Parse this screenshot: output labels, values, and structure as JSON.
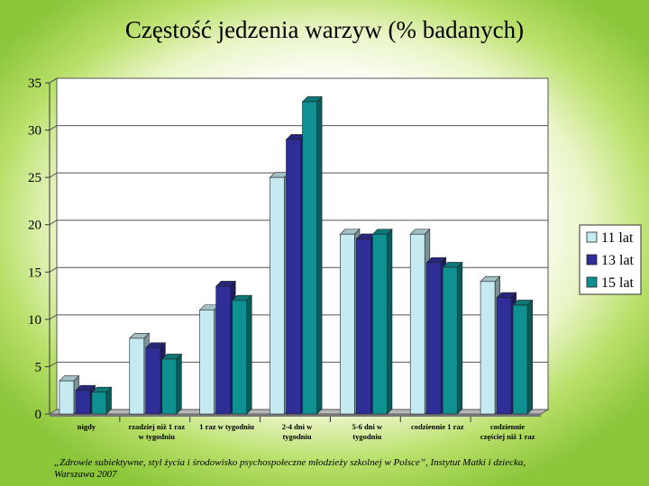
{
  "slide": {
    "title": "Częstość jedzenia warzyw (% badanych)",
    "source": "„Zdrowie subiektywne, styl życia i środowisko psychospołeczne młodzieży szkolnej w Polsce”, Instytut Matki i dziecka, Warszawa 2007"
  },
  "chart_data": {
    "type": "bar",
    "title": "Częstość jedzenia warzyw (% badanych)",
    "categories": [
      [
        "nigdy"
      ],
      [
        "rzadziej niż 1 raz",
        "w tygodniu"
      ],
      [
        "1 raz w tygodniu"
      ],
      [
        "2-4 dni w",
        "tygodniu"
      ],
      [
        "5-6 dni w",
        "tygodniu"
      ],
      [
        "codziennie 1 raz"
      ],
      [
        "codziennie",
        "częściej niż 1 raz"
      ]
    ],
    "series": [
      {
        "name": "11 lat",
        "color": "#c5eaf2",
        "values": [
          3.5,
          8.0,
          11.0,
          25.0,
          19.0,
          19.0,
          14.0
        ]
      },
      {
        "name": "13 lat",
        "color": "#2e2e96",
        "values": [
          2.5,
          7.0,
          13.5,
          29.0,
          18.5,
          16.0,
          12.3
        ]
      },
      {
        "name": "15 lat",
        "color": "#0f9191",
        "values": [
          2.3,
          5.8,
          12.0,
          33.0,
          19.0,
          15.5,
          11.5
        ]
      }
    ],
    "yticks": [
      "0",
      "5",
      "10",
      "15",
      "20",
      "25",
      "30",
      "35"
    ],
    "ylim": [
      0,
      35
    ],
    "grid": true,
    "legend_position": "right",
    "three_d": true
  }
}
